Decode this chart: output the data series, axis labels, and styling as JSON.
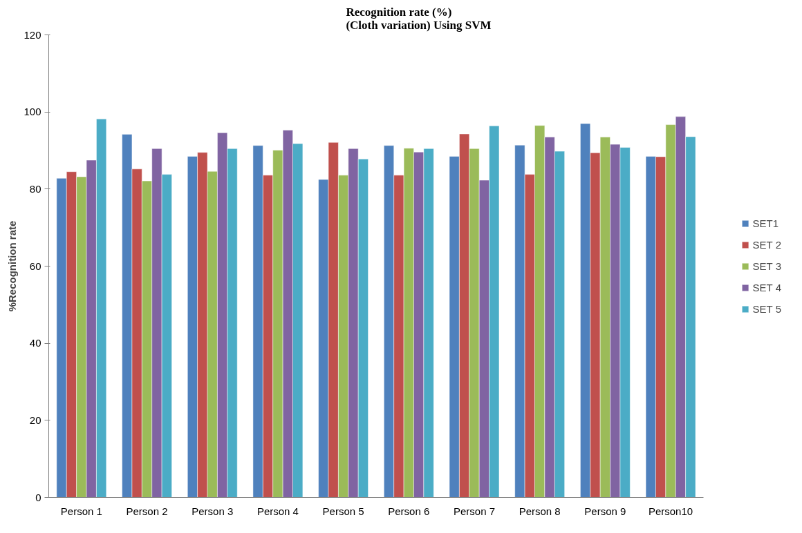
{
  "chart_data": {
    "type": "bar",
    "title": "Recognition rate (%)\n(Cloth variation) Using SVM",
    "ylabel": "%Recognition rate",
    "categories": [
      "Person 1",
      "Person 2",
      "Person 3",
      "Person 4",
      "Person 5",
      "Person 6",
      "Person 7",
      "Person 8",
      "Person 9",
      "Person10"
    ],
    "series": [
      {
        "name": "SET1",
        "color": "#4f81bd",
        "values": [
          82.8,
          94.2,
          88.5,
          91.3,
          82.5,
          91.3,
          88.5,
          91.4,
          97.0,
          88.5
        ]
      },
      {
        "name": "SET 2",
        "color": "#c0504d",
        "values": [
          84.5,
          85.2,
          89.5,
          83.6,
          92.1,
          83.6,
          94.3,
          83.8,
          89.4,
          88.4
        ]
      },
      {
        "name": "SET 3",
        "color": "#9bbb59",
        "values": [
          83.2,
          82.1,
          84.6,
          90.1,
          83.6,
          90.6,
          90.5,
          96.5,
          93.5,
          96.7
        ]
      },
      {
        "name": "SET 4",
        "color": "#8064a2",
        "values": [
          87.5,
          90.5,
          94.6,
          95.3,
          90.5,
          89.6,
          82.3,
          93.5,
          91.6,
          98.8
        ]
      },
      {
        "name": "SET 5",
        "color": "#4bacc6",
        "values": [
          98.2,
          83.8,
          90.5,
          91.8,
          87.8,
          90.5,
          96.4,
          89.8,
          90.8,
          93.6
        ]
      }
    ],
    "ylim": [
      0,
      120
    ],
    "yticks": [
      0,
      20,
      40,
      60,
      80,
      100,
      120
    ],
    "grid": false,
    "legend": "right"
  }
}
